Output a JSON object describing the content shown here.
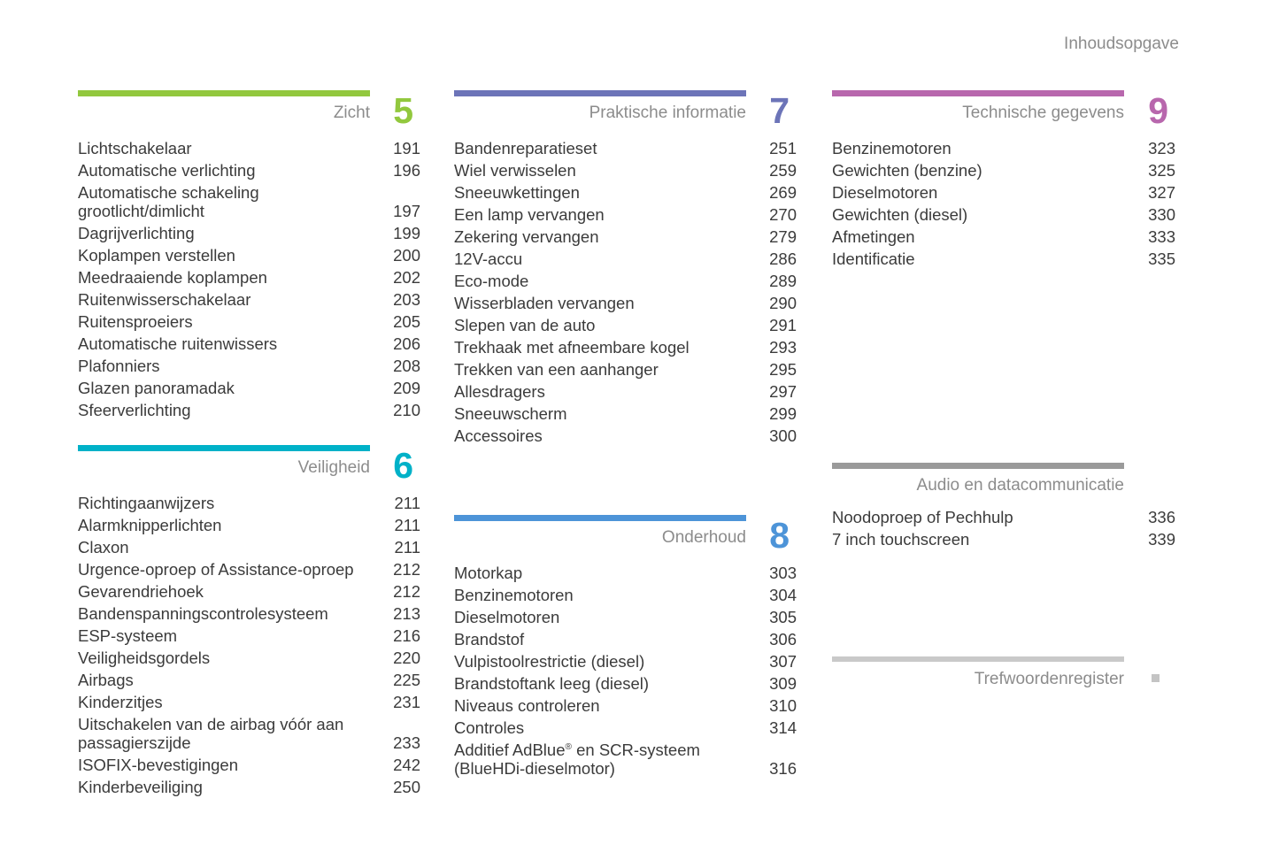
{
  "page": {
    "title": "Inhoudsopgave"
  },
  "sections": [
    {
      "label": "Zicht",
      "number": "5",
      "color": "#92C83E",
      "items": [
        {
          "label": "Lichtschakelaar",
          "page": "191"
        },
        {
          "label": "Automatische verlichting",
          "page": "196"
        },
        {
          "label": "Automatische schakeling\ngrootlicht/dimlicht",
          "page": "197"
        },
        {
          "label": "Dagrijverlichting",
          "page": "199"
        },
        {
          "label": "Koplampen verstellen",
          "page": "200"
        },
        {
          "label": "Meedraaiende koplampen",
          "page": "202"
        },
        {
          "label": "Ruitenwisserschakelaar",
          "page": "203"
        },
        {
          "label": "Ruitensproeiers",
          "page": "205"
        },
        {
          "label": "Automatische ruitenwissers",
          "page": "206"
        },
        {
          "label": "Plafonniers",
          "page": "208"
        },
        {
          "label": "Glazen panoramadak",
          "page": "209"
        },
        {
          "label": "Sfeerverlichting",
          "page": "210"
        }
      ]
    },
    {
      "label": "Veiligheid",
      "number": "6",
      "color": "#00B1C8",
      "items": [
        {
          "label": "Richtingaanwijzers",
          "page": "211"
        },
        {
          "label": "Alarmknipperlichten",
          "page": "211"
        },
        {
          "label": "Claxon",
          "page": "211"
        },
        {
          "label": "Urgence-oproep of Assistance-oproep",
          "page": "212"
        },
        {
          "label": "Gevarendriehoek",
          "page": "212"
        },
        {
          "label": "Bandenspanningscontrolesysteem",
          "page": "213"
        },
        {
          "label": "ESP-systeem",
          "page": "216"
        },
        {
          "label": "Veiligheidsgordels",
          "page": "220"
        },
        {
          "label": "Airbags",
          "page": "225"
        },
        {
          "label": "Kinderzitjes",
          "page": "231"
        },
        {
          "label": "Uitschakelen van de airbag vóór aan\npassagierszijde",
          "page": "233"
        },
        {
          "label": "ISOFIX-bevestigingen",
          "page": "242"
        },
        {
          "label": "Kinderbeveiliging",
          "page": "250"
        }
      ]
    },
    {
      "label": "Praktische informatie",
      "number": "7",
      "color": "#6C74B8",
      "items": [
        {
          "label": "Bandenreparatieset",
          "page": "251"
        },
        {
          "label": "Wiel verwisselen",
          "page": "259"
        },
        {
          "label": "Sneeuwkettingen",
          "page": "269"
        },
        {
          "label": "Een lamp vervangen",
          "page": "270"
        },
        {
          "label": "Zekering vervangen",
          "page": "279"
        },
        {
          "label": "12V-accu",
          "page": "286"
        },
        {
          "label": "Eco-mode",
          "page": "289"
        },
        {
          "label": "Wisserbladen vervangen",
          "page": "290"
        },
        {
          "label": "Slepen van de auto",
          "page": "291"
        },
        {
          "label": "Trekhaak met afneembare kogel",
          "page": "293"
        },
        {
          "label": "Trekken van een aanhanger",
          "page": "295"
        },
        {
          "label": "Allesdragers",
          "page": "297"
        },
        {
          "label": "Sneeuwscherm",
          "page": "299"
        },
        {
          "label": "Accessoires",
          "page": "300"
        }
      ]
    },
    {
      "label": "Onderhoud",
      "number": "8",
      "color": "#4D94D8",
      "items": [
        {
          "label": "Motorkap",
          "page": "303"
        },
        {
          "label": "Benzinemotoren",
          "page": "304"
        },
        {
          "label": "Dieselmotoren",
          "page": "305"
        },
        {
          "label": "Brandstof",
          "page": "306"
        },
        {
          "label": "Vulpistoolrestrictie (diesel)",
          "page": "307"
        },
        {
          "label": "Brandstoftank leeg (diesel)",
          "page": "309"
        },
        {
          "label": "Niveaus controleren",
          "page": "310"
        },
        {
          "label": "Controles",
          "page": "314"
        },
        {
          "label": "Additief AdBlue® en SCR-systeem\n(BlueHDi-dieselmotor)",
          "page": "316"
        }
      ]
    },
    {
      "label": "Technische gegevens",
      "number": "9",
      "color": "#B867AD",
      "items": [
        {
          "label": "Benzinemotoren",
          "page": "323"
        },
        {
          "label": "Gewichten (benzine)",
          "page": "325"
        },
        {
          "label": "Dieselmotoren",
          "page": "327"
        },
        {
          "label": "Gewichten (diesel)",
          "page": "330"
        },
        {
          "label": "Afmetingen",
          "page": "333"
        },
        {
          "label": "Identificatie",
          "page": "335"
        }
      ]
    },
    {
      "label": "Audio en datacommunicatie",
      "number": "",
      "color": "#9A9A9A",
      "items": [
        {
          "label": "Noodoproep of Pechhulp",
          "page": "336"
        },
        {
          "label": "7 inch touchscreen",
          "page": "339"
        }
      ]
    },
    {
      "label": "Trefwoordenregister",
      "number": "",
      "color": "#C9C9C9",
      "marker_color": "#C4C4C4",
      "items": []
    }
  ]
}
